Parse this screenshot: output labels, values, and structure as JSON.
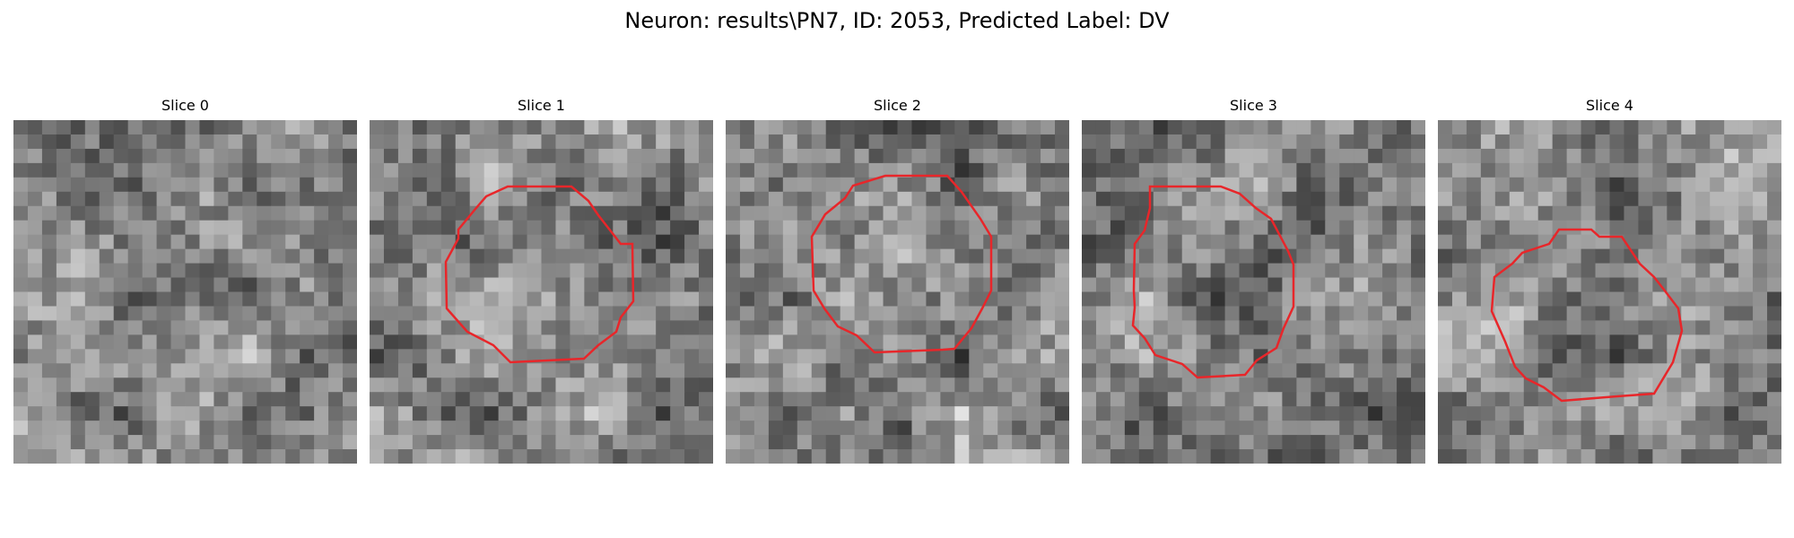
{
  "figure": {
    "title": "Neuron: results\\PN7, ID: 2053, Predicted Label: DV"
  },
  "panels": [
    {
      "title": "Slice 0",
      "has_contour": false
    },
    {
      "title": "Slice 1",
      "has_contour": true
    },
    {
      "title": "Slice 2",
      "has_contour": true
    },
    {
      "title": "Slice 3",
      "has_contour": true
    },
    {
      "title": "Slice 4",
      "has_contour": true
    }
  ],
  "colors": {
    "contour": "#e8262a",
    "background": "#ffffff"
  }
}
